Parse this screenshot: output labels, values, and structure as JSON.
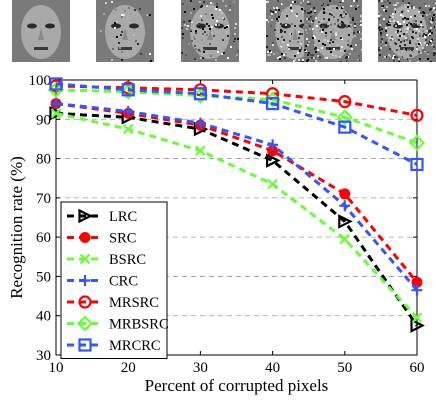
{
  "thumbnails": [
    {
      "name": "face-0",
      "noise": 0.0
    },
    {
      "name": "face-1",
      "noise": 0.1
    },
    {
      "name": "face-2",
      "noise": 0.3
    },
    {
      "name": "face-3",
      "noise": 0.45
    },
    {
      "name": "face-4",
      "noise": 0.6
    },
    {
      "name": "face-5",
      "noise": 0.8
    }
  ],
  "chart_data": {
    "type": "line",
    "xlabel": "Percent of corrupted pixels",
    "ylabel": "Recognition rate (%)",
    "x": [
      10,
      20,
      30,
      40,
      50,
      60
    ],
    "xlim": [
      10,
      60
    ],
    "ylim": [
      30,
      100
    ],
    "xticks": [
      "10",
      "20",
      "30",
      "40",
      "50",
      "60"
    ],
    "yticks": [
      "30",
      "40",
      "50",
      "60",
      "70",
      "80",
      "90",
      "100"
    ],
    "grid": "horizontal dashed",
    "legend_position": "lower-left",
    "series": [
      {
        "name": "LRC",
        "color": "#000000",
        "marker": "triangle-right",
        "values": [
          91.5,
          90.5,
          87.5,
          79.5,
          64.0,
          37.5
        ]
      },
      {
        "name": "SRC",
        "color": "#ff0000",
        "marker": "dot",
        "values": [
          94.0,
          91.5,
          88.5,
          82.0,
          71.0,
          48.5
        ]
      },
      {
        "name": "BSRC",
        "color": "#66ff33",
        "marker": "x",
        "values": [
          91.5,
          87.5,
          82.0,
          73.5,
          59.5,
          39.5
        ]
      },
      {
        "name": "CRC",
        "color": "#3355ff",
        "marker": "plus",
        "values": [
          94.0,
          92.0,
          89.0,
          83.5,
          68.0,
          46.5
        ]
      },
      {
        "name": "MRSRC",
        "color": "#ff0000",
        "marker": "circle",
        "values": [
          98.5,
          98.0,
          97.5,
          96.5,
          94.5,
          91.0
        ]
      },
      {
        "name": "MRBSRC",
        "color": "#66ff33",
        "marker": "diamond",
        "values": [
          97.5,
          97.0,
          96.0,
          95.0,
          90.5,
          84.0
        ]
      },
      {
        "name": "MRCRC",
        "color": "#3355ff",
        "marker": "square",
        "values": [
          99.0,
          97.5,
          96.5,
          94.0,
          88.0,
          78.5
        ]
      }
    ]
  }
}
